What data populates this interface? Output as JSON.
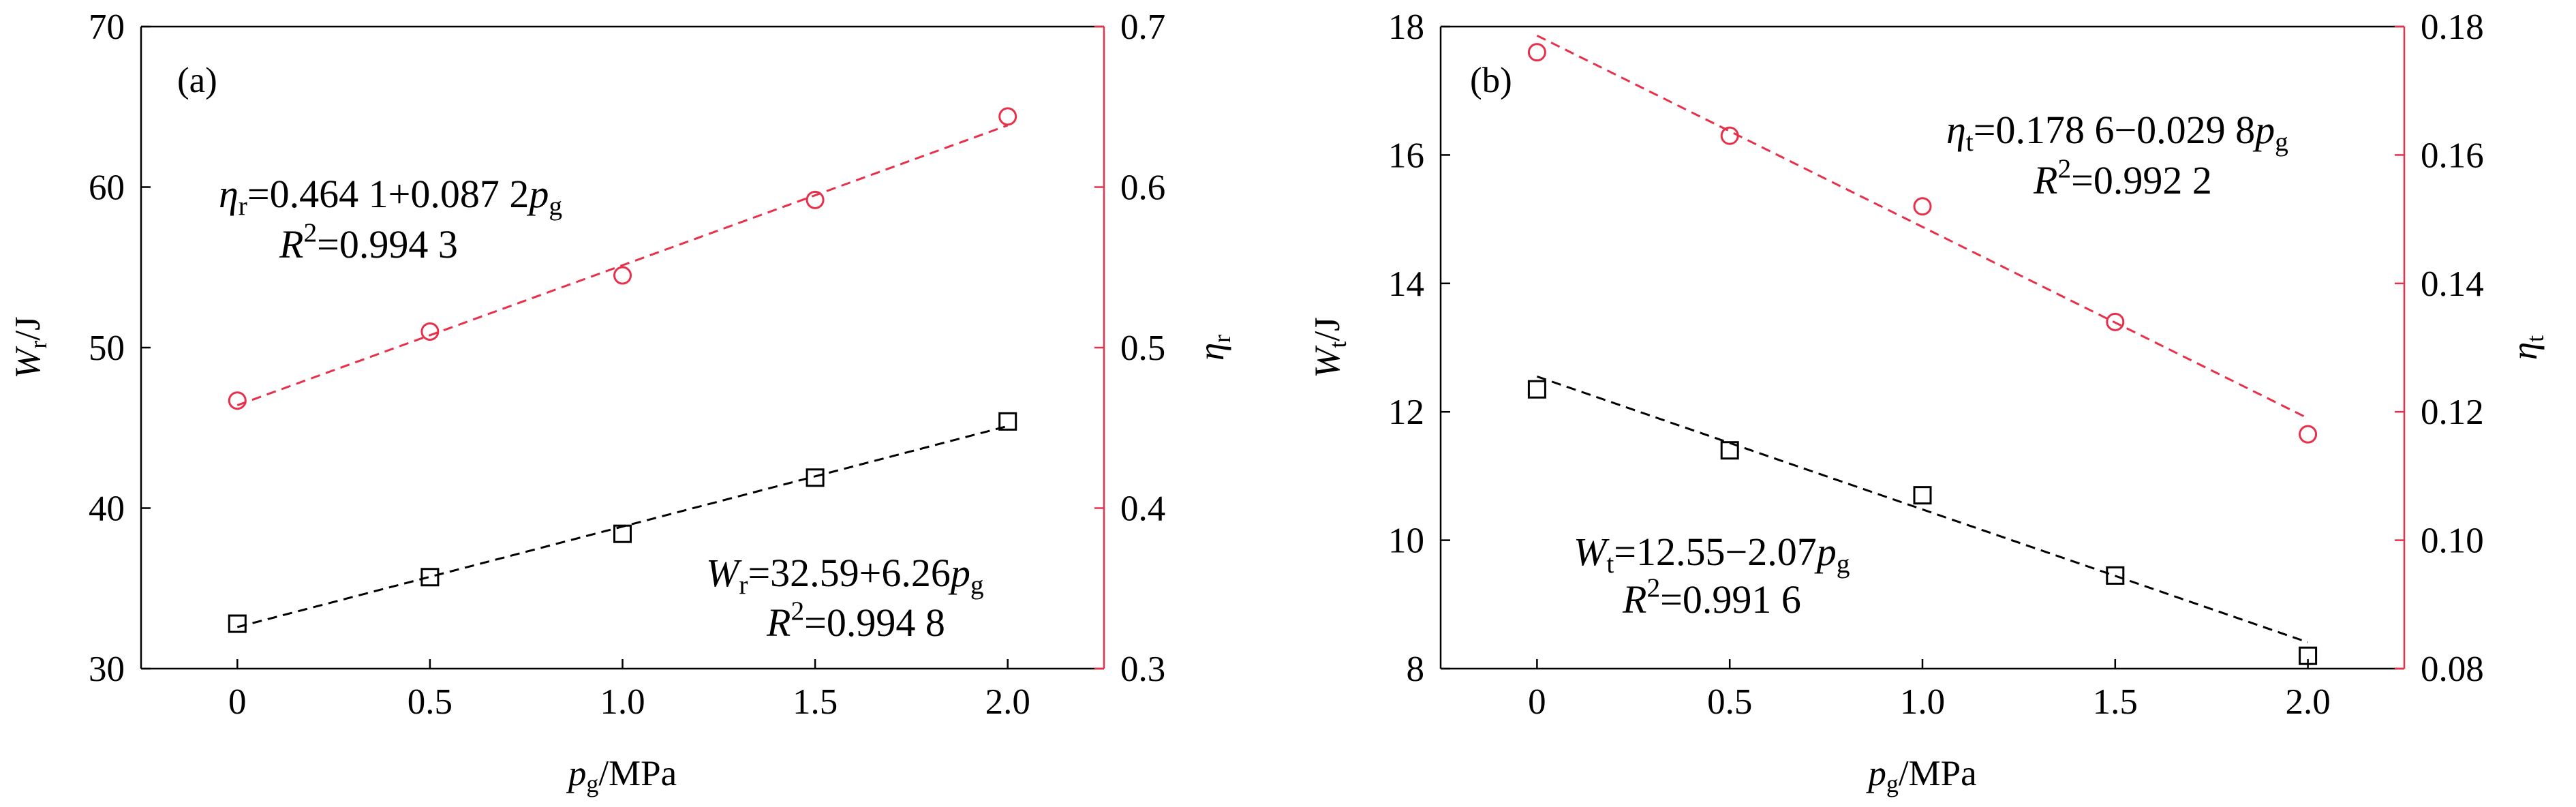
{
  "chart_data": [
    {
      "type": "scatter",
      "label": "(a)",
      "x": [
        0,
        0.5,
        1,
        1.5,
        2
      ],
      "xlim": [
        -0.25,
        2.25
      ],
      "xticks": [
        0,
        0.5,
        {
          "value": 1,
          "label": "1.0"
        },
        1.5,
        {
          "value": 2,
          "label": "2.0"
        }
      ],
      "ylim": [
        30,
        70
      ],
      "yticks": [
        30,
        40,
        50,
        60,
        70
      ],
      "y2lim": [
        0.3,
        0.7
      ],
      "y2ticks": [
        0.3,
        0.4,
        0.5,
        0.6,
        0.7
      ],
      "y2color": "#e8304a",
      "xlabel": [
        {
          "text": "p",
          "style": "italic"
        },
        {
          "text": "g",
          "style": "sub"
        },
        {
          "text": "/MPa"
        }
      ],
      "ylabel": [
        {
          "text": "W",
          "style": "italic"
        },
        {
          "text": "r",
          "style": "sub"
        },
        {
          "text": "/J"
        }
      ],
      "y2label": [
        {
          "text": "η",
          "style": "italic"
        },
        {
          "text": "r",
          "style": "sub"
        }
      ],
      "series": [
        {
          "color": "#000000",
          "marker": "square",
          "values": [
            32.8,
            35.7,
            38.4,
            41.9,
            45.4
          ]
        },
        {
          "color": "#e8304a",
          "marker": "circle",
          "axis": "y2",
          "values": [
            0.467,
            0.51,
            0.545,
            0.592,
            0.644
          ]
        }
      ],
      "fits": [
        {
          "color": "#000000",
          "x": [
            0,
            2
          ],
          "values": [
            32.59,
            45.11
          ]
        },
        {
          "color": "#e8304a",
          "axis": "y2",
          "x": [
            0,
            2
          ],
          "values": [
            0.4641,
            0.6385
          ]
        }
      ],
      "annotations": [
        {
          "color": "#e8304a",
          "lines": [
            [
              {
                "text": "η",
                "style": "italic"
              },
              {
                "text": "r",
                "style": "sub"
              },
              {
                "text": "=0.464 1+0.087 2"
              },
              {
                "text": "p",
                "style": "italic"
              },
              {
                "text": "g",
                "style": "sub"
              }
            ],
            [
              {
                "text": "R",
                "style": "italic"
              },
              {
                "text": "2",
                "style": "sup"
              },
              {
                "text": "=0.994 3"
              }
            ]
          ]
        },
        {
          "color": "#000000",
          "lines": [
            [
              {
                "text": "W",
                "style": "italic"
              },
              {
                "text": "r",
                "style": "sub"
              },
              {
                "text": "=32.59+6.26"
              },
              {
                "text": "p",
                "style": "italic"
              },
              {
                "text": "g",
                "style": "sub"
              }
            ],
            [
              {
                "text": "R",
                "style": "italic"
              },
              {
                "text": "2",
                "style": "sup"
              },
              {
                "text": "=0.994 8"
              }
            ]
          ]
        }
      ]
    },
    {
      "type": "scatter",
      "label": "(b)",
      "x": [
        0,
        0.5,
        1,
        1.5,
        2
      ],
      "xlim": [
        -0.25,
        2.25
      ],
      "xticks": [
        0,
        0.5,
        {
          "value": 1,
          "label": "1.0"
        },
        1.5,
        {
          "value": 2,
          "label": "2.0"
        }
      ],
      "ylim": [
        8,
        18
      ],
      "yticks": [
        8,
        10,
        12,
        14,
        16,
        18
      ],
      "y2lim": [
        0.08,
        0.18
      ],
      "y2ticks": [
        0.08,
        {
          "value": 0.1,
          "label": "0.10"
        },
        0.12,
        0.14,
        0.16,
        0.18
      ],
      "y2color": "#e8304a",
      "xlabel": [
        {
          "text": "p",
          "style": "italic"
        },
        {
          "text": "g",
          "style": "sub"
        },
        {
          "text": "/MPa"
        }
      ],
      "ylabel": [
        {
          "text": "W",
          "style": "italic"
        },
        {
          "text": "t",
          "style": "sub"
        },
        {
          "text": "/J"
        }
      ],
      "y2label": [
        {
          "text": "η",
          "style": "italic"
        },
        {
          "text": "t",
          "style": "sub"
        }
      ],
      "series": [
        {
          "color": "#000000",
          "marker": "square",
          "values": [
            12.35,
            11.4,
            10.7,
            9.45,
            8.2
          ]
        },
        {
          "color": "#e8304a",
          "marker": "circle",
          "axis": "y2",
          "values": [
            0.176,
            0.163,
            0.152,
            0.134,
            0.1165
          ]
        }
      ],
      "fits": [
        {
          "color": "#000000",
          "x": [
            0,
            2
          ],
          "values": [
            12.55,
            8.41
          ]
        },
        {
          "color": "#e8304a",
          "axis": "y2",
          "x": [
            0,
            2
          ],
          "values": [
            0.1786,
            0.119
          ]
        }
      ],
      "annotations": [
        {
          "color": "#e8304a",
          "lines": [
            [
              {
                "text": "η",
                "style": "italic"
              },
              {
                "text": "t",
                "style": "sub"
              },
              {
                "text": "=0.178 6−0.029 8"
              },
              {
                "text": "p",
                "style": "italic"
              },
              {
                "text": "g",
                "style": "sub"
              }
            ],
            [
              {
                "text": "R",
                "style": "italic"
              },
              {
                "text": "2",
                "style": "sup"
              },
              {
                "text": "=0.992 2"
              }
            ]
          ]
        },
        {
          "color": "#000000",
          "lines": [
            [
              {
                "text": "W",
                "style": "italic"
              },
              {
                "text": "t",
                "style": "sub"
              },
              {
                "text": "=12.55−2.07"
              },
              {
                "text": "p",
                "style": "italic"
              },
              {
                "text": "g",
                "style": "sub"
              }
            ],
            [
              {
                "text": "R",
                "style": "italic"
              },
              {
                "text": "2",
                "style": "sup"
              },
              {
                "text": "=0.991 6"
              }
            ]
          ]
        }
      ]
    }
  ]
}
